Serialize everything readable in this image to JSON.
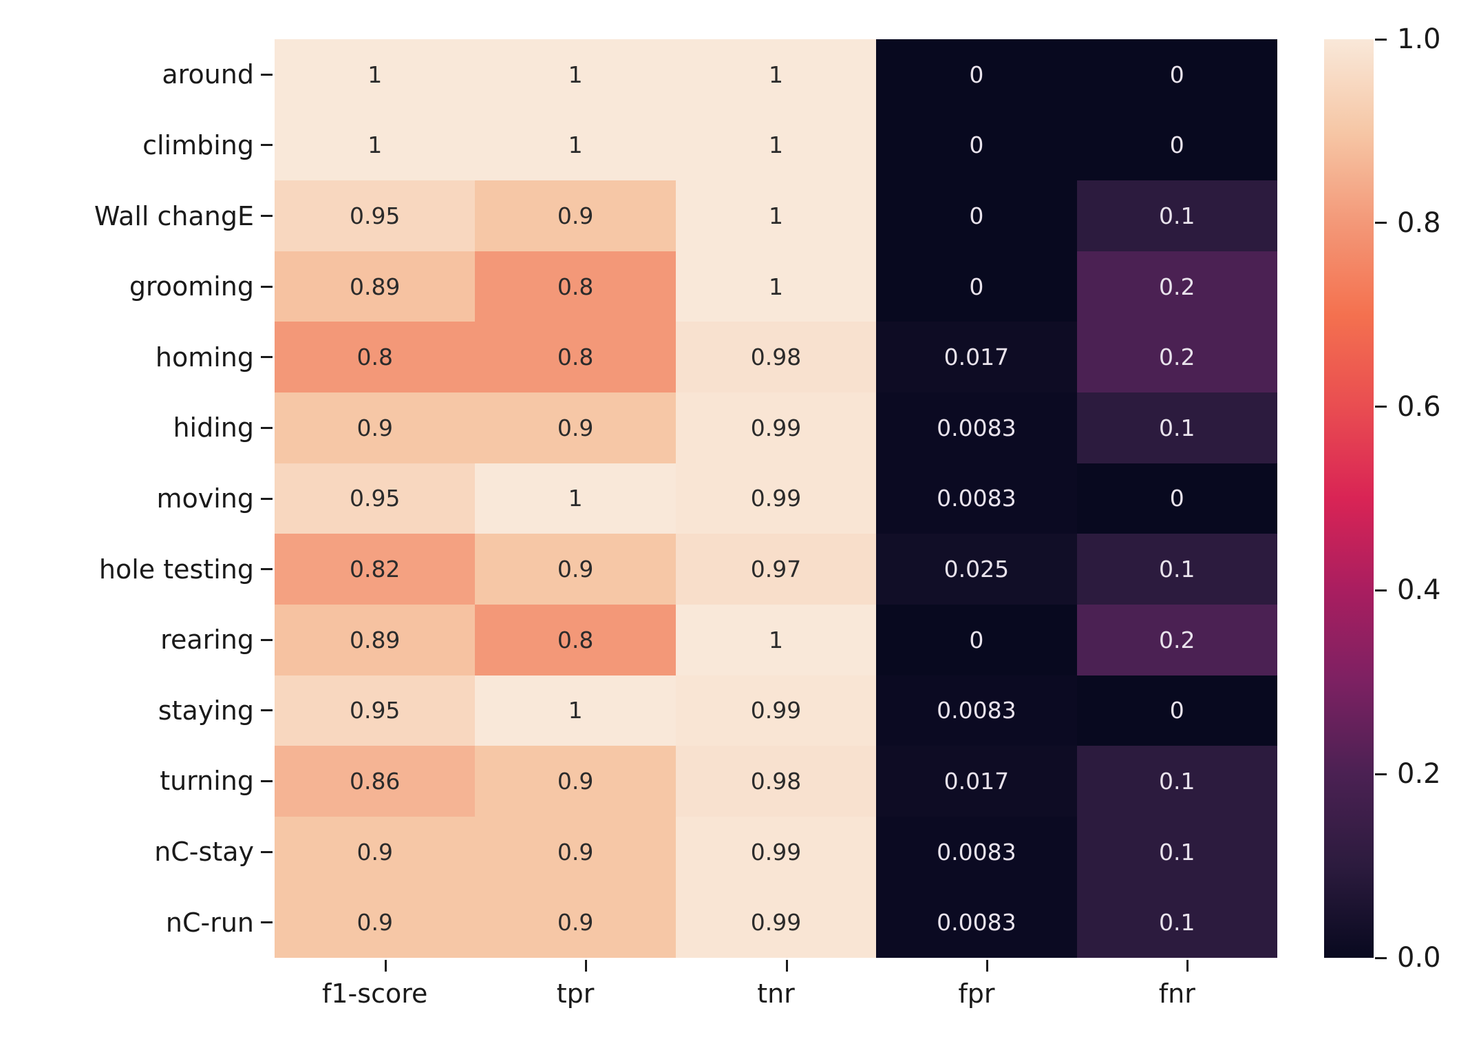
{
  "figure": {
    "background": "#ffffff",
    "axis_color": "#1a1a1a"
  },
  "chart_data": {
    "type": "heatmap",
    "rows": [
      "around",
      "climbing",
      "Wall changE",
      "grooming",
      "homing",
      "hiding",
      "moving",
      "hole testing",
      "rearing",
      "staying",
      "turning",
      "nC-stay",
      "nC-run"
    ],
    "columns": [
      "f1-score",
      "tpr",
      "tnr",
      "fpr",
      "fnr"
    ],
    "values": [
      [
        1,
        1,
        1,
        0,
        0
      ],
      [
        1,
        1,
        1,
        0,
        0
      ],
      [
        0.95,
        0.9,
        1,
        0,
        0.1
      ],
      [
        0.89,
        0.8,
        1,
        0,
        0.2
      ],
      [
        0.8,
        0.8,
        0.98,
        0.017,
        0.2
      ],
      [
        0.9,
        0.9,
        0.99,
        0.0083,
        0.1
      ],
      [
        0.95,
        1,
        0.99,
        0.0083,
        0
      ],
      [
        0.82,
        0.9,
        0.97,
        0.025,
        0.1
      ],
      [
        0.89,
        0.8,
        1,
        0,
        0.2
      ],
      [
        0.95,
        1,
        0.99,
        0.0083,
        0
      ],
      [
        0.86,
        0.9,
        0.98,
        0.017,
        0.1
      ],
      [
        0.9,
        0.9,
        0.99,
        0.0083,
        0.1
      ],
      [
        0.9,
        0.9,
        0.99,
        0.0083,
        0.1
      ]
    ],
    "cell_labels": [
      [
        "1",
        "1",
        "1",
        "0",
        "0"
      ],
      [
        "1",
        "1",
        "1",
        "0",
        "0"
      ],
      [
        "0.95",
        "0.9",
        "1",
        "0",
        "0.1"
      ],
      [
        "0.89",
        "0.8",
        "1",
        "0",
        "0.2"
      ],
      [
        "0.8",
        "0.8",
        "0.98",
        "0.017",
        "0.2"
      ],
      [
        "0.9",
        "0.9",
        "0.99",
        "0.0083",
        "0.1"
      ],
      [
        "0.95",
        "1",
        "0.99",
        "0.0083",
        "0"
      ],
      [
        "0.82",
        "0.9",
        "0.97",
        "0.025",
        "0.1"
      ],
      [
        "0.89",
        "0.8",
        "1",
        "0",
        "0.2"
      ],
      [
        "0.95",
        "1",
        "0.99",
        "0.0083",
        "0"
      ],
      [
        "0.86",
        "0.9",
        "0.98",
        "0.017",
        "0.1"
      ],
      [
        "0.9",
        "0.9",
        "0.99",
        "0.0083",
        "0.1"
      ],
      [
        "0.9",
        "0.9",
        "0.99",
        "0.0083",
        "0.1"
      ]
    ],
    "vmin": 0,
    "vmax": 1,
    "grid_lines": false,
    "legend_position": "right-colorbar",
    "colorbar": {
      "tick_labels": [
        "1.0",
        "0.8",
        "0.6",
        "0.4",
        "0.2",
        "0.0"
      ],
      "tick_values": [
        1.0,
        0.8,
        0.6,
        0.4,
        0.2,
        0.0
      ]
    },
    "colormap": {
      "name": "rocket",
      "stops": [
        [
          0.0,
          "#08091f"
        ],
        [
          0.1,
          "#2c1b3e"
        ],
        [
          0.2,
          "#4b2153"
        ],
        [
          0.3,
          "#7c2162"
        ],
        [
          0.4,
          "#a91e60"
        ],
        [
          0.5,
          "#d92455"
        ],
        [
          0.6,
          "#e94d51"
        ],
        [
          0.7,
          "#f4714f"
        ],
        [
          0.8,
          "#f39878"
        ],
        [
          0.9,
          "#f6c7a6"
        ],
        [
          1.0,
          "#f9e8d9"
        ]
      ]
    },
    "annotation_text_colors": {
      "on_light": "#2b2b2b",
      "on_dark": "#e9e3ec"
    }
  }
}
